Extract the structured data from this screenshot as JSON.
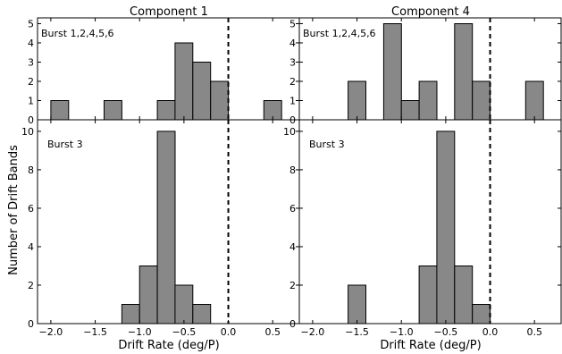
{
  "chart_data": {
    "type": "bar",
    "ylabel": "Number of Drift Bands",
    "xlabel": "Drift Rate (deg/P)",
    "xlim": [
      -2.15,
      0.8
    ],
    "x_ticks": [
      -2.0,
      -1.5,
      -1.0,
      -0.5,
      0.0,
      0.5
    ],
    "x_tick_labels": [
      "−2.0",
      "−1.5",
      "−1.0",
      "−0.5",
      "0.0",
      "0.5"
    ],
    "bin_width": 0.2,
    "reference_line": {
      "x": 0.0,
      "style": "dashed"
    },
    "columns": [
      {
        "title": "Component 1"
      },
      {
        "title": "Component 4"
      }
    ],
    "panels": [
      {
        "id": "c1-top",
        "column": 0,
        "row": 0,
        "label": "Burst 1,2,4,5,6",
        "ylim": [
          0,
          5.3
        ],
        "yticks": [
          0,
          1,
          2,
          3,
          4,
          5
        ],
        "bars": [
          {
            "x": -1.9,
            "value": 1
          },
          {
            "x": -1.3,
            "value": 1
          },
          {
            "x": -0.7,
            "value": 1
          },
          {
            "x": -0.5,
            "value": 4
          },
          {
            "x": -0.3,
            "value": 3
          },
          {
            "x": -0.1,
            "value": 2
          },
          {
            "x": 0.5,
            "value": 1
          }
        ]
      },
      {
        "id": "c4-top",
        "column": 1,
        "row": 0,
        "label": "Burst 1,2,4,5,6",
        "ylim": [
          0,
          5.3
        ],
        "yticks": [
          0,
          1,
          2,
          3,
          4,
          5
        ],
        "bars": [
          {
            "x": -1.5,
            "value": 2
          },
          {
            "x": -1.1,
            "value": 5
          },
          {
            "x": -0.9,
            "value": 1
          },
          {
            "x": -0.7,
            "value": 2
          },
          {
            "x": -0.3,
            "value": 5
          },
          {
            "x": -0.1,
            "value": 2
          },
          {
            "x": 0.5,
            "value": 2
          }
        ]
      },
      {
        "id": "c1-bottom",
        "column": 0,
        "row": 1,
        "label": "Burst 3",
        "ylim": [
          0,
          10.6
        ],
        "yticks": [
          0,
          2,
          4,
          6,
          8,
          10
        ],
        "bars": [
          {
            "x": -1.1,
            "value": 1
          },
          {
            "x": -0.9,
            "value": 3
          },
          {
            "x": -0.7,
            "value": 10
          },
          {
            "x": -0.5,
            "value": 2
          },
          {
            "x": -0.3,
            "value": 1
          }
        ]
      },
      {
        "id": "c4-bottom",
        "column": 1,
        "row": 1,
        "label": "Burst 3",
        "ylim": [
          0,
          10.6
        ],
        "yticks": [
          0,
          2,
          4,
          6,
          8,
          10
        ],
        "bars": [
          {
            "x": -1.5,
            "value": 2
          },
          {
            "x": -0.7,
            "value": 3
          },
          {
            "x": -0.5,
            "value": 10
          },
          {
            "x": -0.3,
            "value": 3
          },
          {
            "x": -0.1,
            "value": 1
          }
        ]
      }
    ],
    "colors": {
      "bar_fill": "#888888",
      "bar_edge": "#000000"
    }
  }
}
